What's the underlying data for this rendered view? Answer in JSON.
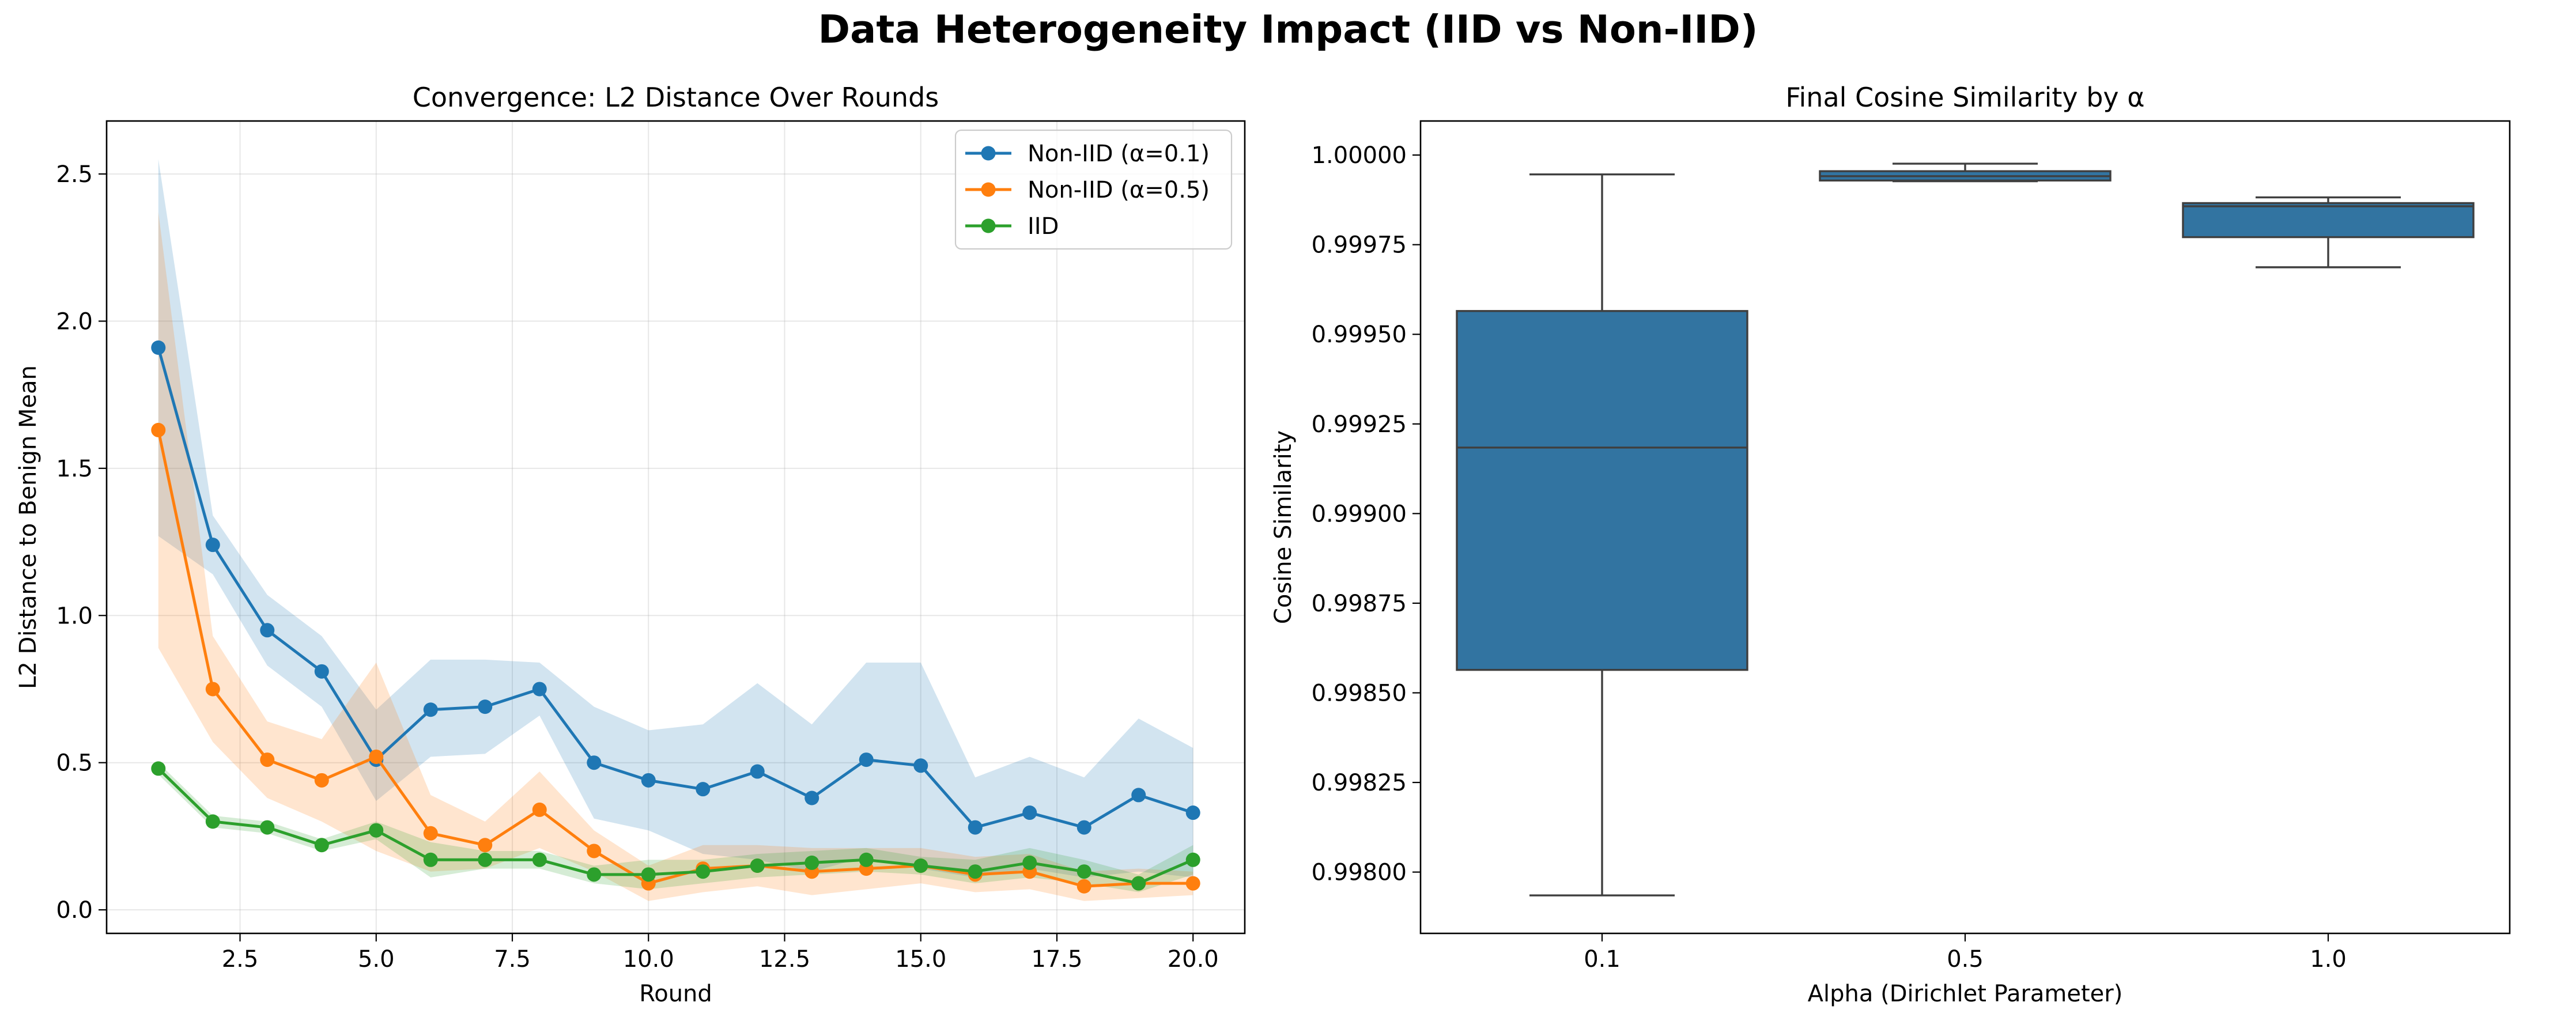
{
  "figure": {
    "title": "Data Heterogeneity Impact (IID vs Non-IID)"
  },
  "chart_data": [
    {
      "type": "line",
      "title": "Convergence: L2 Distance Over Rounds",
      "xlabel": "Round",
      "ylabel": "L2 Distance to Benign Mean",
      "xlim": [
        0.05,
        20.95
      ],
      "ylim": [
        -0.08,
        2.68
      ],
      "xticks": [
        2.5,
        5.0,
        7.5,
        10.0,
        12.5,
        15.0,
        17.5,
        20.0
      ],
      "xtick_labels": [
        "2.5",
        "5.0",
        "7.5",
        "10.0",
        "12.5",
        "15.0",
        "17.5",
        "20.0"
      ],
      "yticks": [
        0.0,
        0.5,
        1.0,
        1.5,
        2.0,
        2.5
      ],
      "ytick_labels": [
        "0.0",
        "0.5",
        "1.0",
        "1.5",
        "2.0",
        "2.5"
      ],
      "grid": true,
      "legend_position": "top-right",
      "x": [
        1,
        2,
        3,
        4,
        5,
        6,
        7,
        8,
        9,
        10,
        11,
        12,
        13,
        14,
        15,
        16,
        17,
        18,
        19,
        20
      ],
      "series": [
        {
          "name": "Non-IID (α=0.1)",
          "color": "#1f77b4",
          "values": [
            1.91,
            1.24,
            0.95,
            0.81,
            0.51,
            0.68,
            0.69,
            0.75,
            0.5,
            0.44,
            0.41,
            0.47,
            0.38,
            0.51,
            0.49,
            0.28,
            0.33,
            0.28,
            0.39,
            0.33
          ],
          "band_upper": [
            2.55,
            1.34,
            1.07,
            0.93,
            0.68,
            0.85,
            0.85,
            0.84,
            0.69,
            0.61,
            0.63,
            0.77,
            0.63,
            0.84,
            0.84,
            0.45,
            0.52,
            0.45,
            0.65,
            0.55
          ],
          "band_lower": [
            1.27,
            1.14,
            0.83,
            0.69,
            0.37,
            0.52,
            0.53,
            0.66,
            0.31,
            0.27,
            0.19,
            0.17,
            0.13,
            0.18,
            0.14,
            0.11,
            0.14,
            0.11,
            0.13,
            0.11
          ]
        },
        {
          "name": "Non-IID (α=0.5)",
          "color": "#ff7f0e",
          "values": [
            1.63,
            0.75,
            0.51,
            0.44,
            0.52,
            0.26,
            0.22,
            0.34,
            0.2,
            0.09,
            0.14,
            0.15,
            0.13,
            0.14,
            0.15,
            0.12,
            0.13,
            0.08,
            0.09,
            0.09
          ],
          "band_upper": [
            2.37,
            0.93,
            0.64,
            0.58,
            0.84,
            0.39,
            0.3,
            0.47,
            0.27,
            0.15,
            0.22,
            0.22,
            0.21,
            0.21,
            0.21,
            0.18,
            0.19,
            0.13,
            0.14,
            0.13
          ],
          "band_lower": [
            0.89,
            0.57,
            0.38,
            0.3,
            0.2,
            0.13,
            0.14,
            0.21,
            0.13,
            0.03,
            0.06,
            0.08,
            0.05,
            0.07,
            0.09,
            0.06,
            0.07,
            0.03,
            0.04,
            0.05
          ]
        },
        {
          "name": "IID",
          "color": "#2ca02c",
          "values": [
            0.48,
            0.3,
            0.28,
            0.22,
            0.27,
            0.17,
            0.17,
            0.17,
            0.12,
            0.12,
            0.13,
            0.15,
            0.16,
            0.17,
            0.15,
            0.13,
            0.16,
            0.13,
            0.09,
            0.17
          ],
          "band_upper": [
            0.5,
            0.32,
            0.3,
            0.24,
            0.3,
            0.23,
            0.2,
            0.2,
            0.15,
            0.17,
            0.17,
            0.19,
            0.2,
            0.21,
            0.18,
            0.17,
            0.21,
            0.17,
            0.12,
            0.22
          ],
          "band_lower": [
            0.46,
            0.28,
            0.26,
            0.2,
            0.24,
            0.11,
            0.14,
            0.14,
            0.09,
            0.07,
            0.09,
            0.11,
            0.12,
            0.13,
            0.12,
            0.09,
            0.11,
            0.09,
            0.06,
            0.12
          ]
        }
      ]
    },
    {
      "type": "box",
      "title": "Final Cosine Similarity by α",
      "xlabel": "Alpha (Dirichlet Parameter)",
      "ylabel": "Cosine Similarity",
      "ylim": [
        0.997829,
        1.000095
      ],
      "yticks": [
        0.998,
        0.99825,
        0.9985,
        0.99875,
        0.999,
        0.99925,
        0.9995,
        0.99975,
        1.0
      ],
      "ytick_labels": [
        "0.99800",
        "0.99825",
        "0.99850",
        "0.99875",
        "0.99900",
        "0.99925",
        "0.99950",
        "0.99975",
        "1.00000"
      ],
      "categories": [
        "0.1",
        "0.5",
        "1.0"
      ],
      "color": "#3274a1",
      "grid": false,
      "boxes": [
        {
          "whisker_low": 0.997935,
          "q1": 0.998564,
          "median": 0.999184,
          "q3": 0.999565,
          "whisker_high": 0.999946
        },
        {
          "whisker_low": 0.999927,
          "q1": 0.999929,
          "median": 0.999941,
          "q3": 0.999955,
          "whisker_high": 0.999976
        },
        {
          "whisker_low": 0.999687,
          "q1": 0.999771,
          "median": 0.999857,
          "q3": 0.999866,
          "whisker_high": 0.999882
        }
      ]
    }
  ]
}
